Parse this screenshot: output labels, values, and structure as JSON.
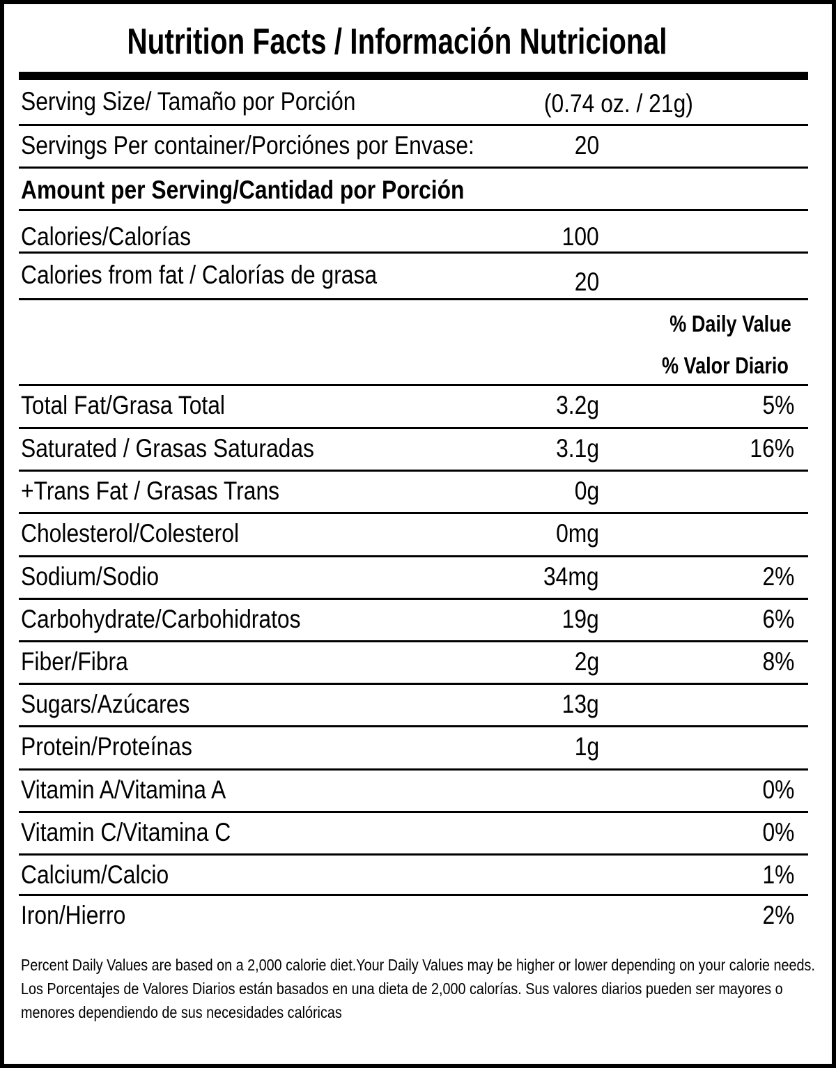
{
  "title": "Nutrition Facts / Información Nutricional",
  "serving": {
    "size_label": "Serving Size/ Tamaño por Porción",
    "size_value": "(0.74 oz. / 21g)",
    "per_container_label": "Servings Per container/Porciónes por Envase:",
    "per_container_value": "20"
  },
  "amount_header": "Amount per Serving/Cantidad por Porción",
  "calories": {
    "label": "Calories/Calorías",
    "value": "100"
  },
  "calories_fat": {
    "label": "Calories from fat / Calorías de grasa",
    "value": "20"
  },
  "daily_value_header": {
    "en": "% Daily Value",
    "es": "% Valor Diario"
  },
  "nutrients": [
    {
      "label": "Total Fat/Grasa Total",
      "amount": "3.2g",
      "pct": "5%"
    },
    {
      "label": "Saturated / Grasas Saturadas",
      "amount": "3.1g",
      "pct": "16%"
    },
    {
      "label": "+Trans Fat / Grasas Trans",
      "amount": "0g",
      "pct": ""
    },
    {
      "label": "Cholesterol/Colesterol",
      "amount": "0mg",
      "pct": ""
    },
    {
      "label": "Sodium/Sodio",
      "amount": "34mg",
      "pct": "2%"
    },
    {
      "label": "Carbohydrate/Carbohidratos",
      "amount": "19g",
      "pct": "6%"
    },
    {
      "label": "Fiber/Fibra",
      "amount": "2g",
      "pct": "8%"
    },
    {
      "label": "Sugars/Azúcares",
      "amount": "13g",
      "pct": ""
    },
    {
      "label": "Protein/Proteínas",
      "amount": "1g",
      "pct": ""
    },
    {
      "label": "Vitamin A/Vitamina A",
      "amount": "",
      "pct": "0%"
    },
    {
      "label": "Vitamin C/Vitamina C",
      "amount": "",
      "pct": "0%"
    },
    {
      "label": "Calcium/Calcio",
      "amount": "",
      "pct": "1%"
    },
    {
      "label": "Iron/Hierro",
      "amount": "",
      "pct": "2%"
    }
  ],
  "footer": {
    "en": "Percent Daily Values are based on a 2,000 calorie diet.Your Daily Values may be higher or lower depending on your calorie needs.",
    "es": "Los Porcentajes de Valores Diarios están basados en una dieta de 2,000 calorías. Sus valores diarios pueden ser mayores o menores dependiendo de sus necesidades calóricas"
  }
}
